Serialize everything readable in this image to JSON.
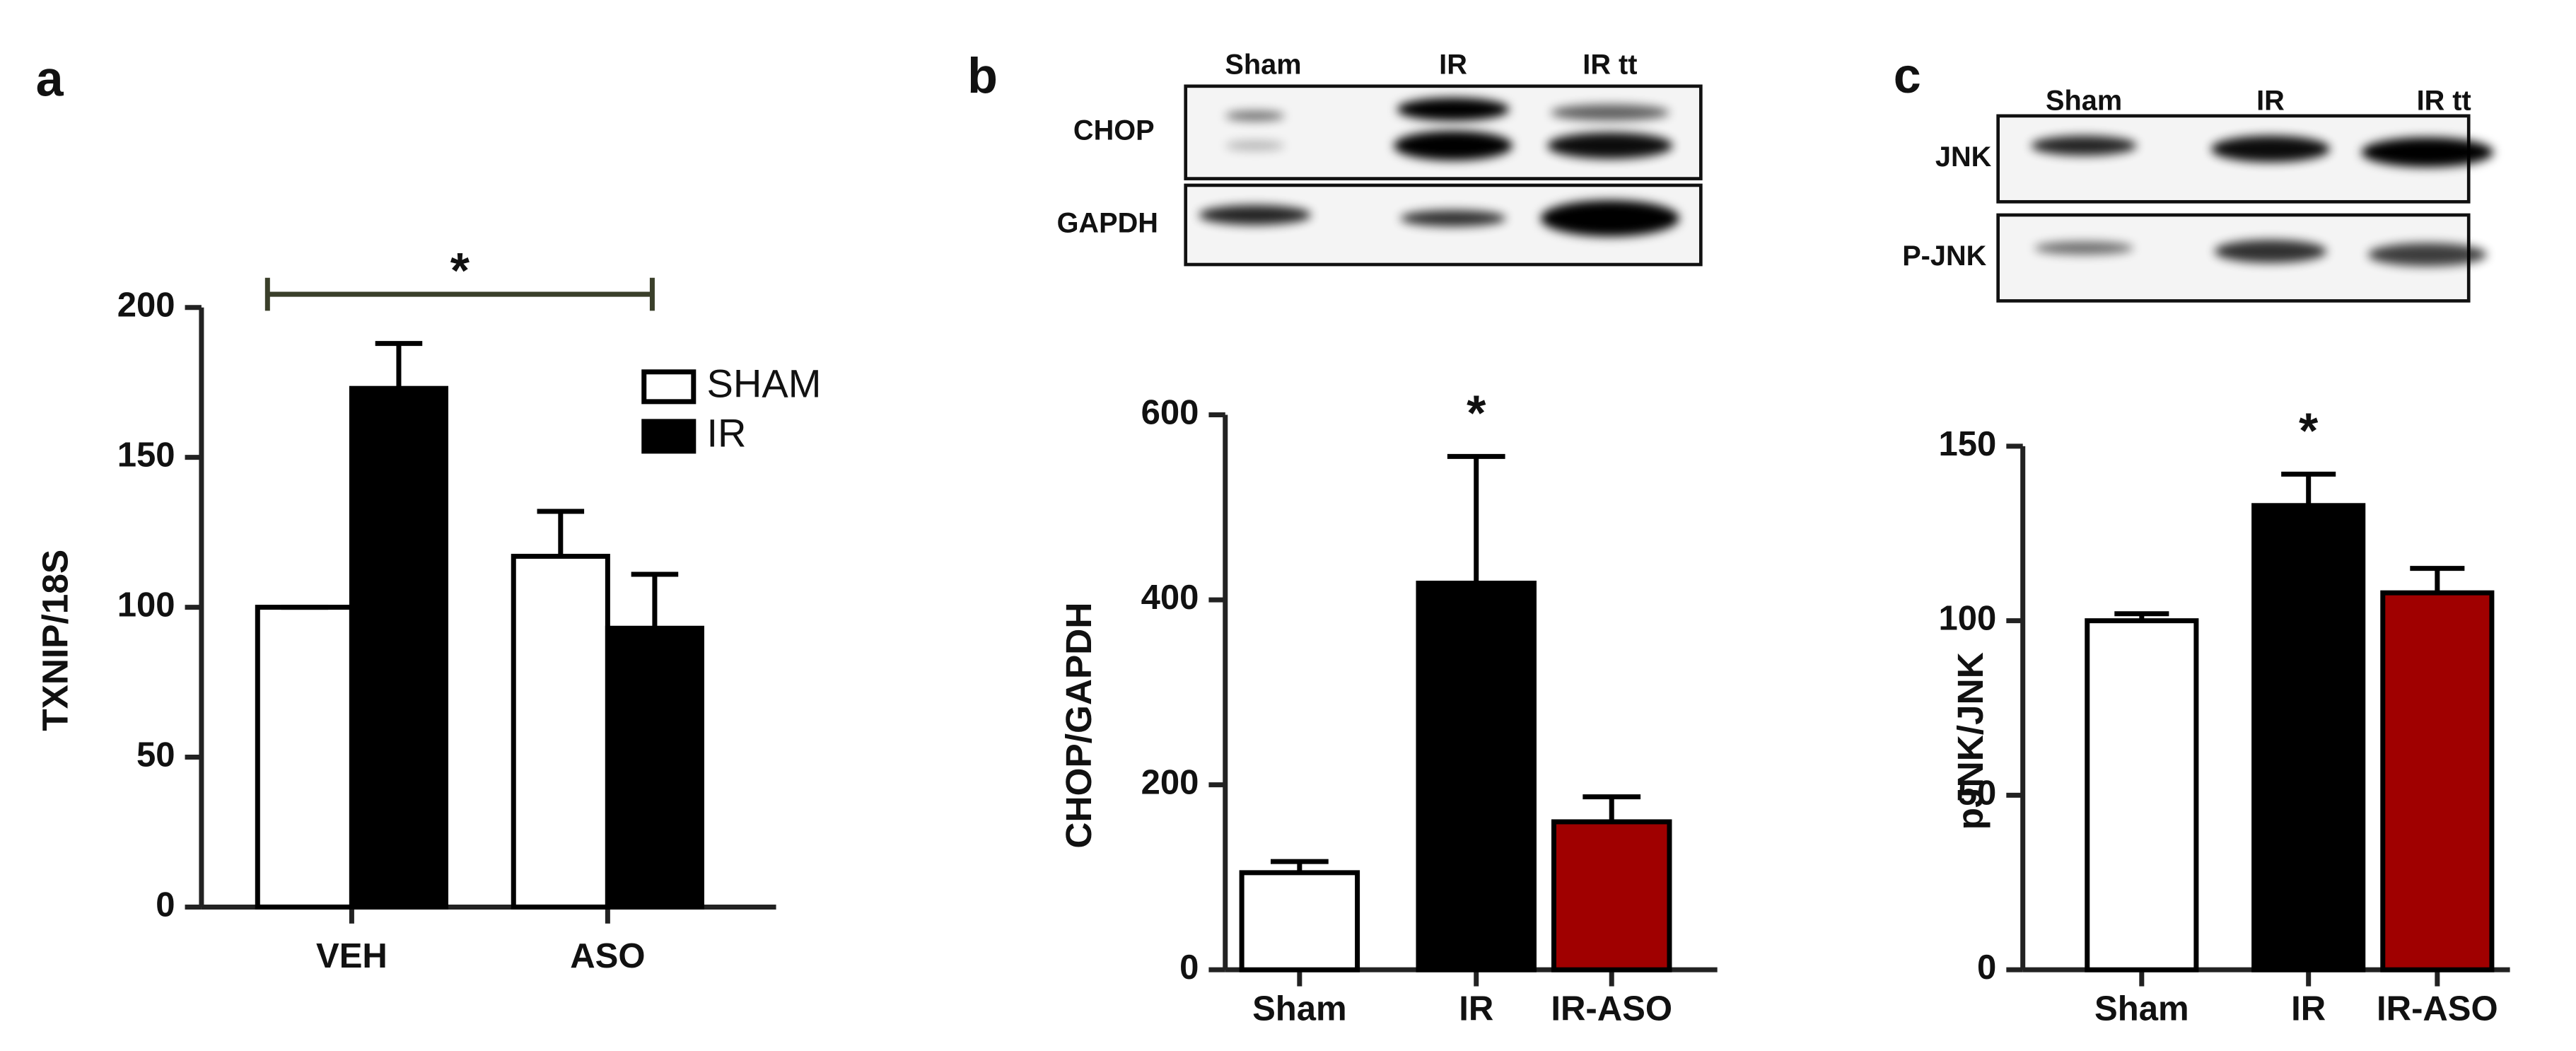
{
  "chart_data": [
    {
      "type": "grouped_bar",
      "label": "a",
      "ylabel": "TXNIP/18S",
      "categories": [
        "VEH",
        "ASO"
      ],
      "series": [
        {
          "name": "SHAM",
          "color": "#ffffff",
          "values": [
            100,
            117
          ],
          "errors": [
            0,
            15
          ]
        },
        {
          "name": "IR",
          "color": "#000000",
          "values": [
            173,
            93
          ],
          "errors": [
            15,
            18
          ]
        }
      ],
      "ylim": [
        0,
        200
      ],
      "yticks": [
        0,
        50,
        100,
        150,
        200
      ],
      "legend": "upper right",
      "annotations": [
        {
          "text": "*",
          "from": "VEH",
          "to": "ASO"
        }
      ]
    },
    {
      "type": "bar",
      "label": "b",
      "ylabel": "CHOP/GAPDH",
      "categories": [
        "Sham",
        "IR",
        "IR-ASO"
      ],
      "values": [
        105,
        418,
        160
      ],
      "errors": [
        12,
        137,
        27
      ],
      "colors": [
        "#ffffff",
        "#000000",
        "#a00000"
      ],
      "ylim": [
        0,
        600
      ],
      "yticks": [
        0,
        200,
        400,
        600
      ],
      "annotations": [
        {
          "text": "*",
          "category": "IR"
        }
      ]
    },
    {
      "type": "bar",
      "label": "c",
      "ylabel": "pJNK/JNK",
      "categories": [
        "Sham",
        "IR",
        "IR-ASO"
      ],
      "values": [
        100,
        133,
        108
      ],
      "errors": [
        2,
        9,
        7
      ],
      "colors": [
        "#ffffff",
        "#000000",
        "#a00000"
      ],
      "ylim": [
        0,
        150
      ],
      "yticks": [
        0,
        50,
        100,
        150
      ],
      "annotations": [
        {
          "text": "*",
          "category": "IR"
        }
      ]
    }
  ],
  "blots": [
    {
      "lanes": [
        "Sham",
        "IR",
        "IR tt"
      ],
      "rows": [
        "CHOP",
        "GAPDH"
      ]
    },
    {
      "lanes": [
        "Sham",
        "IR",
        "IR tt"
      ],
      "rows": [
        "JNK",
        "P-JNK"
      ]
    }
  ]
}
